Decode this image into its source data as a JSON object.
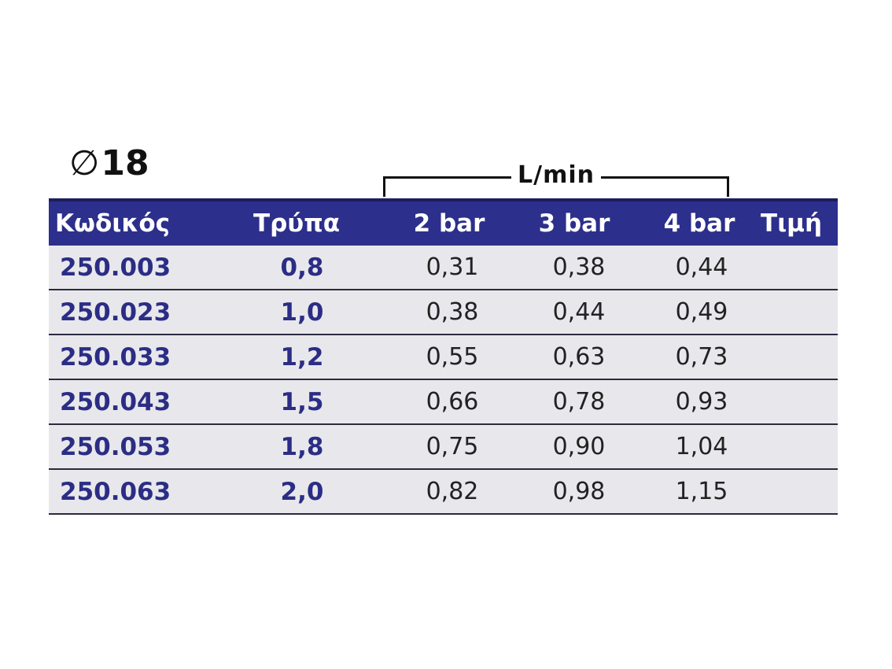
{
  "diameter": {
    "symbol": "∅",
    "value": "18"
  },
  "flow_unit": "L/min",
  "table": {
    "headers": [
      "Κωδικός",
      "Τρύπα",
      "2 bar",
      "3 bar",
      "4 bar",
      "Τιμή"
    ],
    "rows": [
      {
        "code": "250.003",
        "hole": "0,8",
        "bar2": "0,31",
        "bar3": "0,38",
        "bar4": "0,44",
        "price": ""
      },
      {
        "code": "250.023",
        "hole": "1,0",
        "bar2": "0,38",
        "bar3": "0,44",
        "bar4": "0,49",
        "price": ""
      },
      {
        "code": "250.033",
        "hole": "1,2",
        "bar2": "0,55",
        "bar3": "0,63",
        "bar4": "0,73",
        "price": ""
      },
      {
        "code": "250.043",
        "hole": "1,5",
        "bar2": "0,66",
        "bar3": "0,78",
        "bar4": "0,93",
        "price": ""
      },
      {
        "code": "250.053",
        "hole": "1,8",
        "bar2": "0,75",
        "bar3": "0,90",
        "bar4": "1,04",
        "price": ""
      },
      {
        "code": "250.063",
        "hole": "2,0",
        "bar2": "0,82",
        "bar3": "0,98",
        "bar4": "1,15",
        "price": ""
      }
    ]
  },
  "colors": {
    "header_background": "#2c2f8c",
    "code_text": "#2b2d85",
    "row_background": "#e8e8ec"
  }
}
